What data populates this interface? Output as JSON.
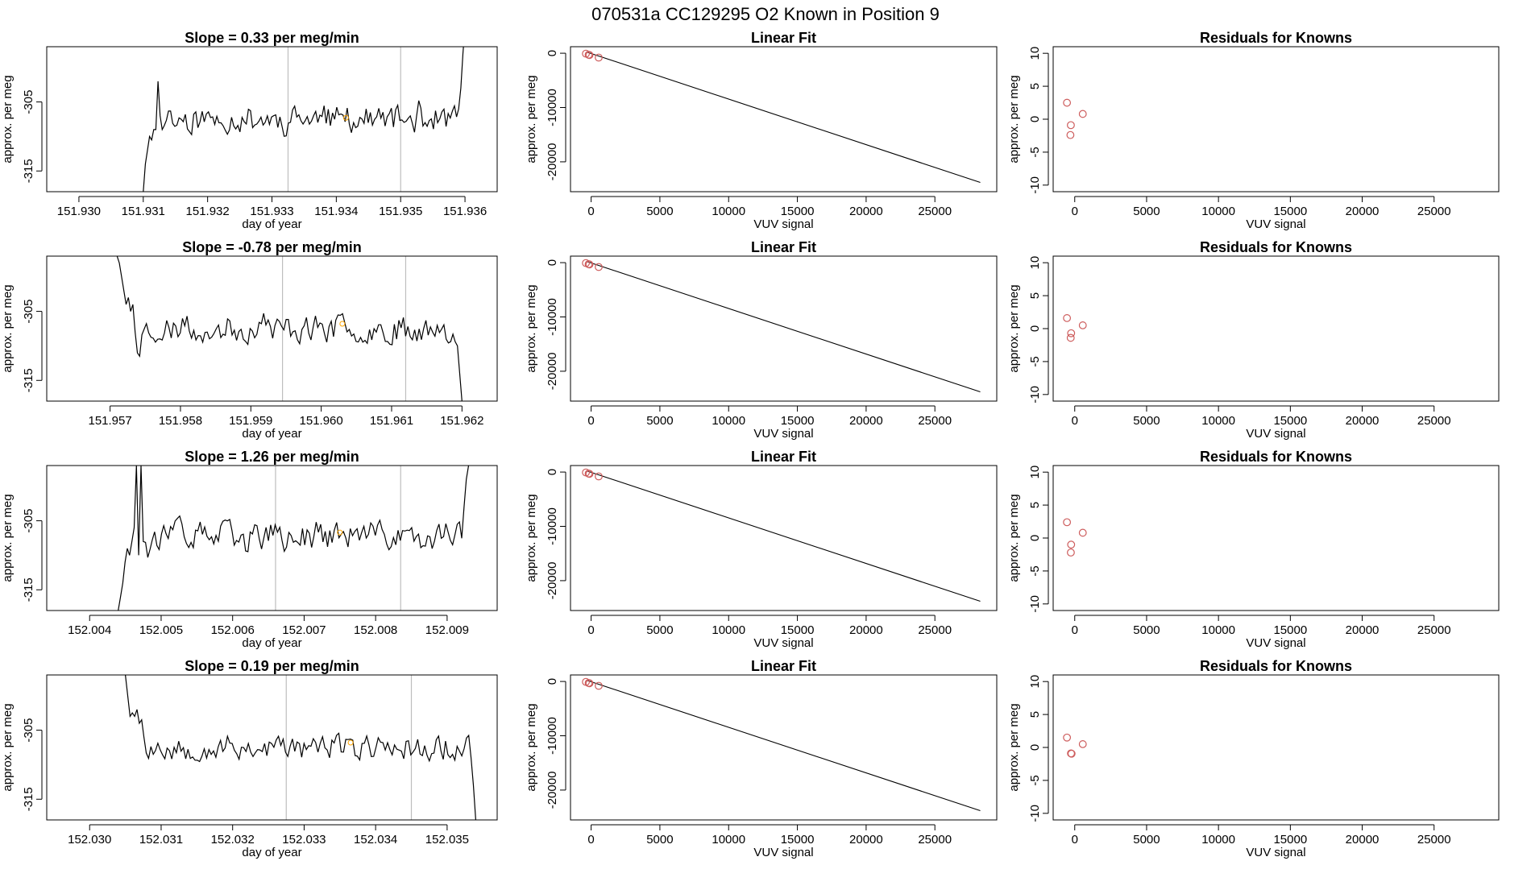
{
  "page": {
    "title": "070531a      CC129295   O2 Known in Position  9"
  },
  "colors": {
    "trace": "#000000",
    "axis": "#000000",
    "vline": "#bebebe",
    "points": "#cd5c5c",
    "marker": "#ffa500"
  },
  "chart_data": [
    {
      "type": "line",
      "row": 0,
      "col": 0,
      "title": "Slope =  0.33  per meg/min",
      "xlabel": "day of year",
      "ylabel": "approx. per meg",
      "xlim": [
        151.9295,
        151.9365
      ],
      "ylim": [
        -318,
        -297
      ],
      "xticks": [
        151.93,
        151.931,
        151.932,
        151.933,
        151.934,
        151.935,
        151.936
      ],
      "xtick_labels": [
        "151.930",
        "151.931",
        "151.932",
        "151.933",
        "151.934",
        "151.935",
        "151.936"
      ],
      "yticks": [
        -315,
        -305
      ],
      "ytick_labels": [
        "-315",
        "-305"
      ],
      "vlines": [
        151.93325,
        151.935
      ],
      "marker": {
        "x": 151.93415,
        "y": -307.3
      },
      "trace": {
        "x_start": 151.931,
        "x_end": 151.936,
        "base": -307.5,
        "amp": 1.7,
        "seed": 11,
        "head": [
          -318,
          -314,
          -312,
          -310,
          -310.5,
          -309,
          -309,
          -302,
          -307,
          -309
        ],
        "tail": [
          -306,
          -303,
          -298,
          -294
        ]
      }
    },
    {
      "type": "scatter",
      "row": 0,
      "col": 1,
      "title": "Linear Fit",
      "xlabel": "VUV signal",
      "ylabel": "approx. per meg",
      "xlim": [
        -1500,
        29500
      ],
      "ylim": [
        -25500,
        1200
      ],
      "xticks": [
        0,
        5000,
        10000,
        15000,
        20000,
        25000
      ],
      "xtick_labels": [
        "0",
        "5000",
        "10000",
        "15000",
        "20000",
        "25000"
      ],
      "yticks": [
        0,
        -10000,
        -20000
      ],
      "ytick_labels": [
        "0",
        "-10000",
        "-20000"
      ],
      "line": {
        "x": [
          -300,
          28300
        ],
        "y": [
          200,
          -23800
        ]
      },
      "points": [
        {
          "x": -380,
          "y": -80
        },
        {
          "x": -180,
          "y": -280
        },
        {
          "x": -120,
          "y": -330
        },
        {
          "x": 550,
          "y": -800
        }
      ]
    },
    {
      "type": "scatter",
      "row": 0,
      "col": 2,
      "title": "Residuals for Knowns",
      "xlabel": "VUV signal",
      "ylabel": "approx. per meg",
      "xlim": [
        -1500,
        29500
      ],
      "ylim": [
        -11,
        11
      ],
      "xticks": [
        0,
        5000,
        10000,
        15000,
        20000,
        25000
      ],
      "xtick_labels": [
        "0",
        "5000",
        "10000",
        "15000",
        "20000",
        "25000"
      ],
      "yticks": [
        10,
        5,
        0,
        -5,
        -10
      ],
      "ytick_labels": [
        "10",
        "5",
        "0",
        "-5",
        "-10"
      ],
      "points": [
        {
          "x": -540,
          "y": 2.5
        },
        {
          "x": -270,
          "y": -0.9
        },
        {
          "x": -300,
          "y": -2.4
        },
        {
          "x": 560,
          "y": 0.8
        }
      ]
    },
    {
      "type": "line",
      "row": 1,
      "col": 0,
      "title": "Slope =  -0.78  per meg/min",
      "xlabel": "day of year",
      "ylabel": "approx. per meg",
      "xlim": [
        151.9561,
        151.9625
      ],
      "ylim": [
        -318,
        -297
      ],
      "xticks": [
        151.957,
        151.958,
        151.959,
        151.96,
        151.961,
        151.962
      ],
      "xtick_labels": [
        "151.957",
        "151.958",
        "151.959",
        "151.960",
        "151.961",
        "151.962"
      ],
      "yticks": [
        -315,
        -305
      ],
      "ytick_labels": [
        "-315",
        "-305"
      ],
      "vlines": [
        151.95945,
        151.9612
      ],
      "marker": {
        "x": 151.9603,
        "y": -306.8
      },
      "trace": {
        "x_start": 151.9571,
        "x_end": 151.962,
        "base": -307.5,
        "amp": 1.7,
        "seed": 23,
        "head": [
          -297,
          -298,
          -300,
          -302,
          -304,
          -303,
          -305,
          -304,
          -308,
          -311,
          -311.5
        ],
        "tail": [
          -310,
          -314,
          -318
        ]
      }
    },
    {
      "type": "scatter",
      "row": 1,
      "col": 1,
      "title": "Linear Fit",
      "xlabel": "VUV signal",
      "ylabel": "approx. per meg",
      "xlim": [
        -1500,
        29500
      ],
      "ylim": [
        -25500,
        1200
      ],
      "xticks": [
        0,
        5000,
        10000,
        15000,
        20000,
        25000
      ],
      "xtick_labels": [
        "0",
        "5000",
        "10000",
        "15000",
        "20000",
        "25000"
      ],
      "yticks": [
        0,
        -10000,
        -20000
      ],
      "ytick_labels": [
        "0",
        "-10000",
        "-20000"
      ],
      "line": {
        "x": [
          -300,
          28300
        ],
        "y": [
          200,
          -23800
        ]
      },
      "points": [
        {
          "x": -380,
          "y": -80
        },
        {
          "x": -180,
          "y": -280
        },
        {
          "x": -120,
          "y": -330
        },
        {
          "x": 550,
          "y": -800
        }
      ]
    },
    {
      "type": "scatter",
      "row": 1,
      "col": 2,
      "title": "Residuals for Knowns",
      "xlabel": "VUV signal",
      "ylabel": "approx. per meg",
      "xlim": [
        -1500,
        29500
      ],
      "ylim": [
        -11,
        11
      ],
      "xticks": [
        0,
        5000,
        10000,
        15000,
        20000,
        25000
      ],
      "xtick_labels": [
        "0",
        "5000",
        "10000",
        "15000",
        "20000",
        "25000"
      ],
      "yticks": [
        10,
        5,
        0,
        -5,
        -10
      ],
      "ytick_labels": [
        "10",
        "5",
        "0",
        "-5",
        "-10"
      ],
      "points": [
        {
          "x": -540,
          "y": 1.6
        },
        {
          "x": -250,
          "y": -0.7
        },
        {
          "x": -280,
          "y": -1.4
        },
        {
          "x": 560,
          "y": 0.5
        }
      ]
    },
    {
      "type": "line",
      "row": 2,
      "col": 0,
      "title": "Slope =  1.26  per meg/min",
      "xlabel": "day of year",
      "ylabel": "approx. per meg",
      "xlim": [
        152.0034,
        152.0097
      ],
      "ylim": [
        -318,
        -297
      ],
      "xticks": [
        152.004,
        152.005,
        152.006,
        152.007,
        152.008,
        152.009
      ],
      "xtick_labels": [
        "152.004",
        "152.005",
        "152.006",
        "152.007",
        "152.008",
        "152.009"
      ],
      "yticks": [
        -315,
        -305
      ],
      "ytick_labels": [
        "-315",
        "-305"
      ],
      "vlines": [
        152.0066,
        152.00835
      ],
      "marker": {
        "x": 152.0075,
        "y": -306.7
      },
      "trace": {
        "x_start": 152.0044,
        "x_end": 152.0093,
        "base": -307.2,
        "amp": 1.8,
        "seed": 37,
        "head": [
          -318,
          -316,
          -314,
          -311,
          -309,
          -310,
          -308,
          -306,
          -297,
          -310,
          -297,
          -308
        ],
        "tail": [
          -303,
          -299,
          -297
        ]
      }
    },
    {
      "type": "scatter",
      "row": 2,
      "col": 1,
      "title": "Linear Fit",
      "xlabel": "VUV signal",
      "ylabel": "approx. per meg",
      "xlim": [
        -1500,
        29500
      ],
      "ylim": [
        -25500,
        1200
      ],
      "xticks": [
        0,
        5000,
        10000,
        15000,
        20000,
        25000
      ],
      "xtick_labels": [
        "0",
        "5000",
        "10000",
        "15000",
        "20000",
        "25000"
      ],
      "yticks": [
        0,
        -10000,
        -20000
      ],
      "ytick_labels": [
        "0",
        "-10000",
        "-20000"
      ],
      "line": {
        "x": [
          -300,
          28300
        ],
        "y": [
          200,
          -23800
        ]
      },
      "points": [
        {
          "x": -380,
          "y": -80
        },
        {
          "x": -180,
          "y": -280
        },
        {
          "x": -120,
          "y": -330
        },
        {
          "x": 550,
          "y": -800
        }
      ]
    },
    {
      "type": "scatter",
      "row": 2,
      "col": 2,
      "title": "Residuals for Knowns",
      "xlabel": "VUV signal",
      "ylabel": "approx. per meg",
      "xlim": [
        -1500,
        29500
      ],
      "ylim": [
        -11,
        11
      ],
      "xticks": [
        0,
        5000,
        10000,
        15000,
        20000,
        25000
      ],
      "xtick_labels": [
        "0",
        "5000",
        "10000",
        "15000",
        "20000",
        "25000"
      ],
      "yticks": [
        10,
        5,
        0,
        -5,
        -10
      ],
      "ytick_labels": [
        "10",
        "5",
        "0",
        "-5",
        "-10"
      ],
      "points": [
        {
          "x": -540,
          "y": 2.4
        },
        {
          "x": -250,
          "y": -1.0
        },
        {
          "x": -270,
          "y": -2.2
        },
        {
          "x": 560,
          "y": 0.8
        }
      ]
    },
    {
      "type": "line",
      "row": 3,
      "col": 0,
      "title": "Slope =  0.19  per meg/min",
      "xlabel": "day of year",
      "ylabel": "approx. per meg",
      "xlim": [
        152.0294,
        152.0357
      ],
      "ylim": [
        -318,
        -297
      ],
      "xticks": [
        152.03,
        152.031,
        152.032,
        152.033,
        152.034,
        152.035
      ],
      "xtick_labels": [
        "152.030",
        "152.031",
        "152.032",
        "152.033",
        "152.034",
        "152.035"
      ],
      "yticks": [
        -315,
        -305
      ],
      "ytick_labels": [
        "-315",
        "-305"
      ],
      "vlines": [
        152.03275,
        152.0345
      ],
      "marker": {
        "x": 152.03365,
        "y": -306.8
      },
      "trace": {
        "x_start": 152.0305,
        "x_end": 152.0354,
        "base": -307.5,
        "amp": 1.6,
        "seed": 53,
        "head": [
          -297,
          -300,
          -303,
          -302.5,
          -303,
          -302,
          -304,
          -303.5,
          -306
        ],
        "tail": [
          -309,
          -313,
          -318
        ]
      }
    },
    {
      "type": "scatter",
      "row": 3,
      "col": 1,
      "title": "Linear Fit",
      "xlabel": "VUV signal",
      "ylabel": "approx. per meg",
      "xlim": [
        -1500,
        29500
      ],
      "ylim": [
        -25500,
        1200
      ],
      "xticks": [
        0,
        5000,
        10000,
        15000,
        20000,
        25000
      ],
      "xtick_labels": [
        "0",
        "5000",
        "10000",
        "15000",
        "20000",
        "25000"
      ],
      "yticks": [
        0,
        -10000,
        -20000
      ],
      "ytick_labels": [
        "0",
        "-10000",
        "-20000"
      ],
      "line": {
        "x": [
          -300,
          28300
        ],
        "y": [
          200,
          -23800
        ]
      },
      "points": [
        {
          "x": -380,
          "y": -80
        },
        {
          "x": -180,
          "y": -280
        },
        {
          "x": -120,
          "y": -330
        },
        {
          "x": 550,
          "y": -800
        }
      ]
    },
    {
      "type": "scatter",
      "row": 3,
      "col": 2,
      "title": "Residuals for Knowns",
      "xlabel": "VUV signal",
      "ylabel": "approx. per meg",
      "xlim": [
        -1500,
        29500
      ],
      "ylim": [
        -11,
        11
      ],
      "xticks": [
        0,
        5000,
        10000,
        15000,
        20000,
        25000
      ],
      "xtick_labels": [
        "0",
        "5000",
        "10000",
        "15000",
        "20000",
        "25000"
      ],
      "yticks": [
        10,
        5,
        0,
        -5,
        -10
      ],
      "ytick_labels": [
        "10",
        "5",
        "0",
        "-5",
        "-10"
      ],
      "points": [
        {
          "x": -540,
          "y": 1.5
        },
        {
          "x": -260,
          "y": -0.9
        },
        {
          "x": -220,
          "y": -0.95
        },
        {
          "x": 560,
          "y": 0.5
        }
      ]
    }
  ]
}
